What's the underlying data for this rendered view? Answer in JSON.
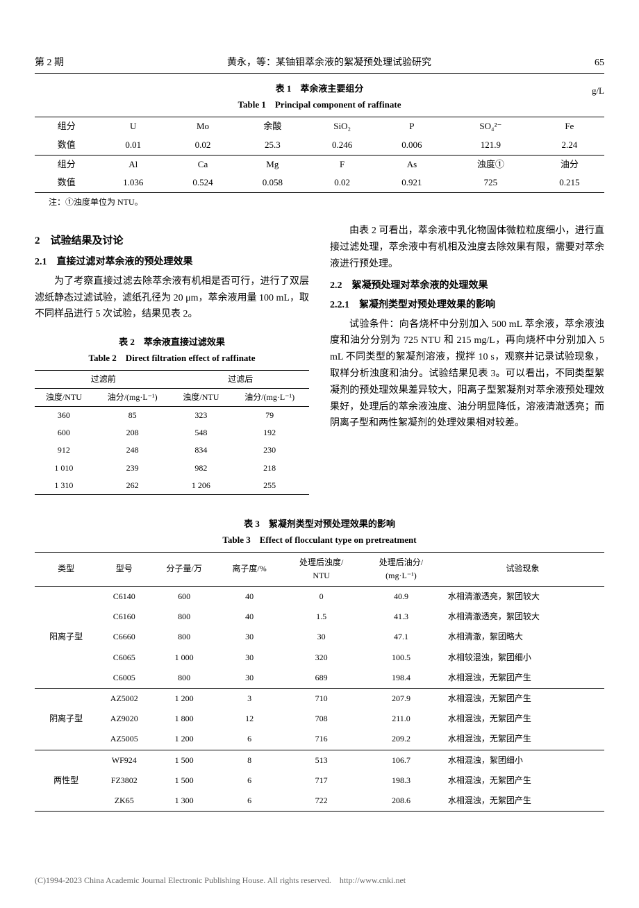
{
  "header": {
    "issue": "第 2 期",
    "title": "黄永，等：某铀钼萃余液的絮凝预处理试验研究",
    "page": "65"
  },
  "table1": {
    "caption_cn": "表 1　萃余液主要组分",
    "caption_en": "Table 1　Principal component of raffinate",
    "unit": "g/L",
    "row1_label": "组分",
    "row1": [
      "U",
      "Mo",
      "余酸",
      "SiO₂",
      "P",
      "SO₄²⁻",
      "Fe"
    ],
    "row2_label": "数值",
    "row2": [
      "0.01",
      "0.02",
      "25.3",
      "0.246",
      "0.006",
      "121.9",
      "2.24"
    ],
    "row3_label": "组分",
    "row3": [
      "Al",
      "Ca",
      "Mg",
      "F",
      "As",
      "浊度①",
      "油分"
    ],
    "row4_label": "数值",
    "row4": [
      "1.036",
      "0.524",
      "0.058",
      "0.02",
      "0.921",
      "725",
      "0.215"
    ],
    "note": "注：①浊度单位为 NTU。"
  },
  "section2": {
    "title": "2　试验结果及讨论",
    "sub21_title": "2.1　直接过滤对萃余液的预处理效果",
    "p21": "为了考察直接过滤去除萃余液有机相是否可行，进行了双层滤纸静态过滤试验，滤纸孔径为 20 μm，萃余液用量 100 mL，取不同样品进行 5 次试验，结果见表 2。",
    "table2_caption_cn": "表 2　萃余液直接过滤效果",
    "table2_caption_en": "Table 2　Direct filtration effect of raffinate",
    "table2_headers_group": [
      "过滤前",
      "过滤后"
    ],
    "table2_headers": [
      "浊度/NTU",
      "油分/(mg·L⁻¹)",
      "浊度/NTU",
      "油分/(mg·L⁻¹)"
    ],
    "table2_rows": [
      [
        "360",
        "85",
        "323",
        "79"
      ],
      [
        "600",
        "208",
        "548",
        "192"
      ],
      [
        "912",
        "248",
        "834",
        "230"
      ],
      [
        "1 010",
        "239",
        "982",
        "218"
      ],
      [
        "1 310",
        "262",
        "1 206",
        "255"
      ]
    ],
    "p_right1": "由表 2 可看出，萃余液中乳化物固体微粒粒度细小，进行直接过滤处理，萃余液中有机相及浊度去除效果有限，需要对萃余液进行预处理。",
    "sub22_title": "2.2　絮凝预处理对萃余液的处理效果",
    "sub221_title": "2.2.1　絮凝剂类型对预处理效果的影响",
    "p_right2": "试验条件：向各烧杯中分别加入 500 mL 萃余液，萃余液浊度和油分分别为 725 NTU 和 215 mg/L，再向烧杯中分别加入 5 mL 不同类型的絮凝剂溶液，搅拌 10 s，观察并记录试验现象，取样分析浊度和油分。试验结果见表 3。可以看出，不同类型絮凝剂的预处理效果差异较大，阳离子型絮凝剂对萃余液预处理效果好，处理后的萃余液浊度、油分明显降低，溶液清澈透亮；而阴离子型和两性絮凝剂的处理效果相对较差。"
  },
  "table3": {
    "caption_cn": "表 3　絮凝剂类型对预处理效果的影响",
    "caption_en": "Table 3　Effect of flocculant type on pretreatment",
    "headers": [
      "类型",
      "型号",
      "分子量/万",
      "离子度/%",
      "处理后浊度/\nNTU",
      "处理后油分/\n(mg·L⁻¹)",
      "试验现象"
    ],
    "groups": [
      {
        "type": "阳离子型",
        "rows": [
          [
            "C6140",
            "600",
            "40",
            "0",
            "40.9",
            "水相清澈透亮，絮团较大"
          ],
          [
            "C6160",
            "800",
            "40",
            "1.5",
            "41.3",
            "水相清澈透亮，絮团较大"
          ],
          [
            "C6660",
            "800",
            "30",
            "30",
            "47.1",
            "水相清澈，絮团略大"
          ],
          [
            "C6065",
            "1 000",
            "30",
            "320",
            "100.5",
            "水相较混浊，絮团细小"
          ],
          [
            "C6005",
            "800",
            "30",
            "689",
            "198.4",
            "水相混浊，无絮团产生"
          ]
        ]
      },
      {
        "type": "阴离子型",
        "rows": [
          [
            "AZ5002",
            "1 200",
            "3",
            "710",
            "207.9",
            "水相混浊，无絮团产生"
          ],
          [
            "AZ9020",
            "1 800",
            "12",
            "708",
            "211.0",
            "水相混浊，无絮团产生"
          ],
          [
            "AZ5005",
            "1 200",
            "6",
            "716",
            "209.2",
            "水相混浊，无絮团产生"
          ]
        ]
      },
      {
        "type": "两性型",
        "rows": [
          [
            "WF924",
            "1 500",
            "8",
            "513",
            "106.7",
            "水相混浊，絮团细小"
          ],
          [
            "FZ3802",
            "1 500",
            "6",
            "717",
            "198.3",
            "水相混浊，无絮团产生"
          ],
          [
            "ZK65",
            "1 300",
            "6",
            "722",
            "208.6",
            "水相混浊，无絮团产生"
          ]
        ]
      }
    ]
  },
  "footer": "(C)1994-2023 China Academic Journal Electronic Publishing House. All rights reserved.　http://www.cnki.net"
}
